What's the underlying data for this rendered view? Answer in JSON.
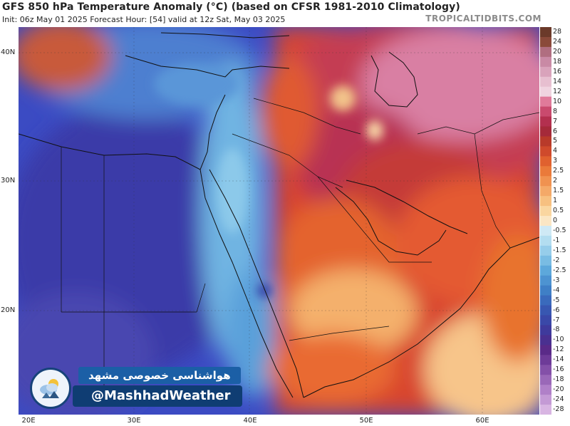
{
  "header": {
    "title": "GFS 850 hPa Temperature Anomaly (°C) (based on CFSR 1981-2010 Climatology)",
    "init_line": "Init: 06z May 01 2025   Forecast Hour: [54]   valid at 12z Sat, May 03 2025",
    "brand": "TROPICALTIDBITS.COM"
  },
  "map": {
    "lat_labels": [
      "40N",
      "30N",
      "20N"
    ],
    "lon_labels": [
      "20E",
      "30E",
      "40E",
      "50E",
      "60E"
    ]
  },
  "colorbar": {
    "labels": [
      "28",
      "24",
      "20",
      "18",
      "16",
      "14",
      "12",
      "10",
      "8",
      "7",
      "6",
      "5",
      "4",
      "3",
      "2.5",
      "2",
      "1.5",
      "1",
      "0.5",
      "0",
      "-0.5",
      "-1",
      "-1.5",
      "-2",
      "-2.5",
      "-3",
      "-4",
      "-5",
      "-6",
      "-7",
      "-8",
      "-10",
      "-12",
      "-14",
      "-16",
      "-18",
      "-20",
      "-24",
      "-28"
    ],
    "colors": [
      "#6b3a2a",
      "#8a4a3a",
      "#b06e80",
      "#c98aa5",
      "#d9a3bb",
      "#e7bfd0",
      "#f0d4e0",
      "#e07a9a",
      "#c94a6e",
      "#b3304f",
      "#a52a3a",
      "#b83a2a",
      "#cf4a2c",
      "#e0612f",
      "#ea7a3a",
      "#f09250",
      "#f4a968",
      "#f7c080",
      "#fad6a0",
      "#fbe6c4",
      "#cfe9f5",
      "#b3ddf0",
      "#96cdea",
      "#79bce3",
      "#5da8db",
      "#4d93d1",
      "#3f7fc6",
      "#3a6abc",
      "#3857b1",
      "#3a48a8",
      "#3f3a9c",
      "#4a3090",
      "#5a2a88",
      "#6e3b98",
      "#8450a8",
      "#9a68b8",
      "#b080c8",
      "#c49ad5",
      "#d8b5e2"
    ]
  },
  "watermark": {
    "persian_text": "هواشناسی خصوصی مشهد",
    "handle": "@MashhadWeather"
  }
}
